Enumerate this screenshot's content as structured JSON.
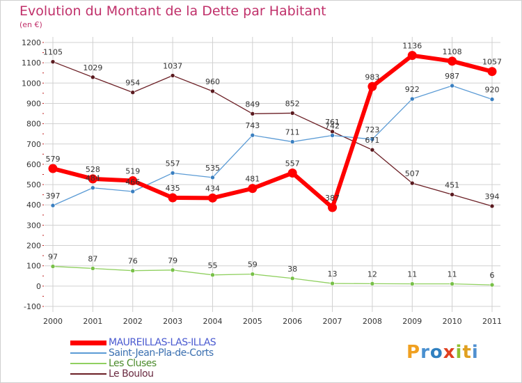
{
  "title": "Evolution du Montant de la Dette par Habitant",
  "subtitle": "(en €)",
  "logo_text": "Proxiti",
  "colors": {
    "title": "#c0306a",
    "grid": "#d0d0d0",
    "axis_text": "#333333",
    "logo_letters": [
      "#f0a020",
      "#4a90d0",
      "#3080c0",
      "#e04020",
      "#90c030",
      "#e0a020",
      "#5090d0"
    ]
  },
  "chart_data": {
    "type": "line",
    "title": "Evolution du Montant de la Dette par Habitant",
    "ylabel": "(en €)",
    "x": [
      "2000",
      "2001",
      "2002",
      "2003",
      "2004",
      "2005",
      "2006",
      "2007",
      "2008",
      "2009",
      "2010",
      "2011"
    ],
    "ylim": [
      -100,
      1200
    ],
    "yticks": [
      -100,
      0,
      100,
      200,
      300,
      400,
      500,
      600,
      700,
      800,
      900,
      1000,
      1100,
      1200
    ],
    "grid": true,
    "legend_position": "bottom-left",
    "series": [
      {
        "name": "Le Boulou",
        "color": "#6b1f25",
        "marker": "#5a1a1f",
        "width": 1.3,
        "values": [
          1105,
          1029,
          954,
          1037,
          960,
          849,
          852,
          761,
          671,
          507,
          451,
          394
        ]
      },
      {
        "name": "Saint-Jean-Pla-de-Corts",
        "color": "#5b9bd5",
        "marker": "#3a7fc0",
        "width": 1.3,
        "values": [
          397,
          484,
          466,
          557,
          535,
          743,
          711,
          742,
          723,
          922,
          987,
          920
        ]
      },
      {
        "name": "Les Cluses",
        "color": "#90d060",
        "marker": "#78c048",
        "width": 1.3,
        "values": [
          97,
          87,
          76,
          79,
          55,
          59,
          38,
          13,
          12,
          11,
          11,
          6
        ]
      },
      {
        "name": "MAUREILLAS-LAS-ILLAS",
        "color": "#ff0000",
        "marker": "#ff0000",
        "width": 6,
        "values": [
          579,
          528,
          519,
          435,
          434,
          481,
          557,
          387,
          983,
          1136,
          1108,
          1057
        ]
      }
    ]
  },
  "legend": [
    {
      "label": "MAUREILLAS-LAS-ILLAS",
      "color": "#ff0000",
      "text_color": "#4a5ad0"
    },
    {
      "label": "Saint-Jean-Pla-de-Corts",
      "color": "#5b9bd5",
      "text_color": "#3a6fb0"
    },
    {
      "label": "Les Cluses",
      "color": "#90d060",
      "text_color": "#4a8a2a"
    },
    {
      "label": "Le Boulou",
      "color": "#6b1f25",
      "text_color": "#6a2a40"
    }
  ]
}
